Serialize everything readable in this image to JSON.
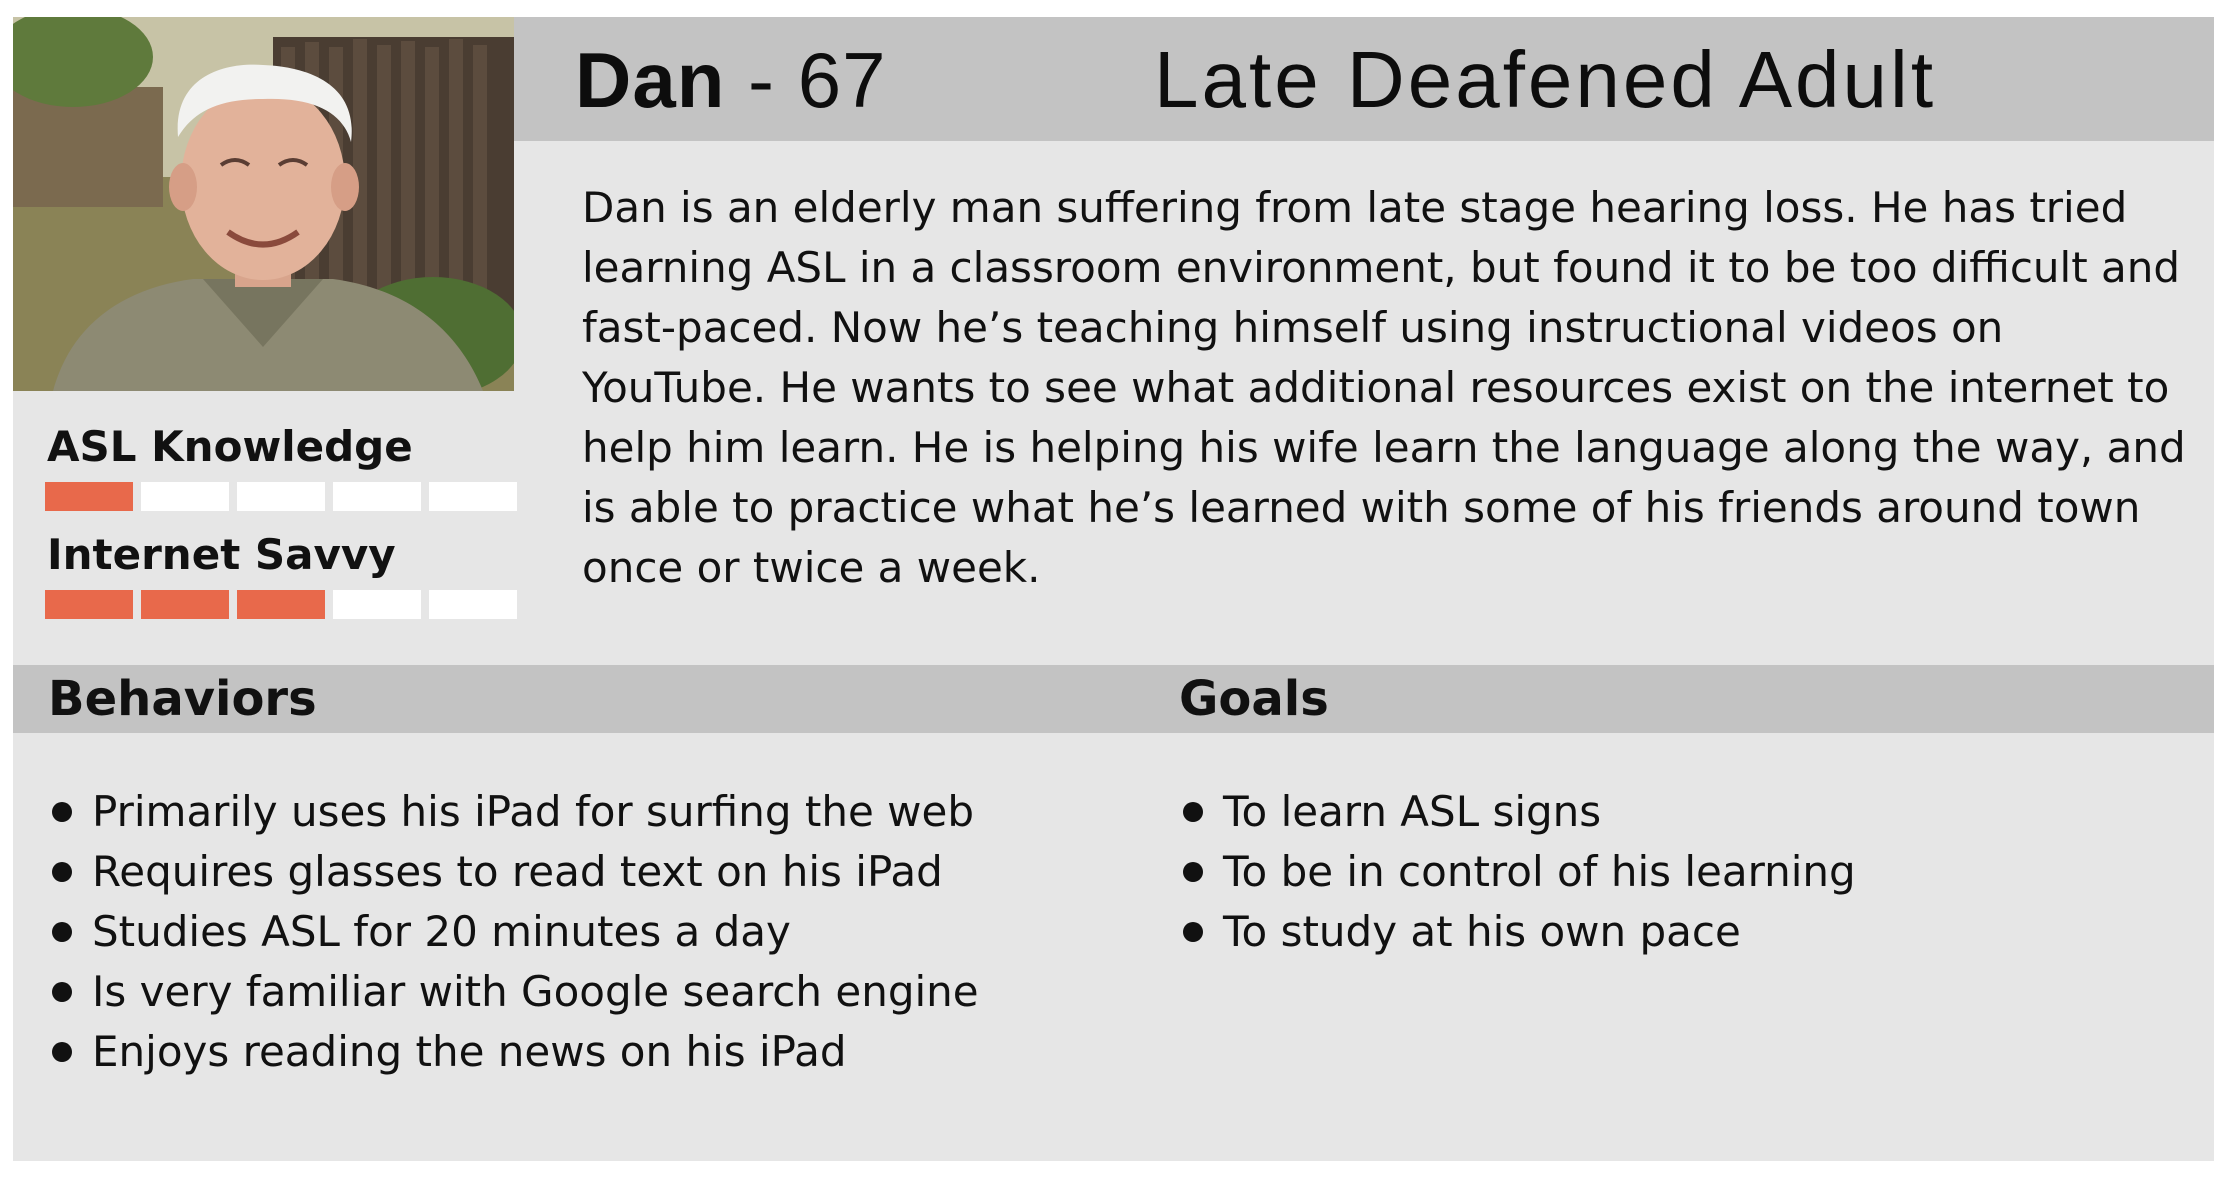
{
  "persona": {
    "name": "Dan",
    "separator": " - ",
    "age": "67",
    "type": "Late Deafened Adult",
    "bio": "Dan is an elderly man suffering from late stage hearing loss. He has tried learning ASL in a classroom environment, but found it to be too difficult and fast-paced. Now he’s teaching himself using instructional videos on YouTube. He wants to see what additional resources exist on the internet to help him learn. He is helping his wife learn the language along the way, and is able to practice what he’s learned with some of his friends around town once or twice a week."
  },
  "meters": [
    {
      "label": "ASL Knowledge",
      "level": 1,
      "max": 5
    },
    {
      "label": "Internet Savvy",
      "level": 3,
      "max": 5
    }
  ],
  "behaviors": {
    "title": "Behaviors",
    "items": [
      "Primarily uses his iPad for surfing the web",
      "Requires glasses to read text on his iPad",
      "Studies ASL for 20 minutes a day",
      "Is very familiar with Google search engine",
      "Enjoys reading the news on his iPad"
    ]
  },
  "goals": {
    "title": "Goals",
    "items": [
      "To learn ASL signs",
      "To be in control of his learning",
      "To study at his own pace"
    ]
  },
  "colors": {
    "meter_on": "#e8694b",
    "meter_off": "#ffffff",
    "header_bar": "#c3c3c3",
    "card_bg": "#e6e6e6"
  }
}
